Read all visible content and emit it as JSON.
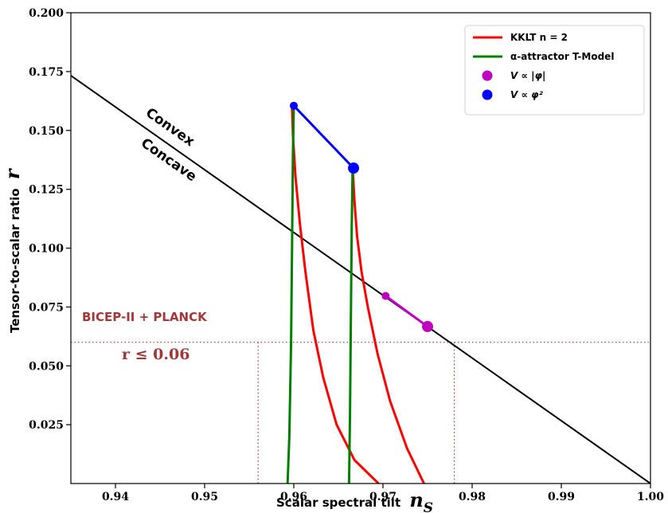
{
  "chart_data": {
    "type": "line",
    "xlabel": "Scalar spectral tilt",
    "xlabel_symbol": "n",
    "xlabel_sub": "S",
    "ylabel": "Tensor-to-scalar ratio",
    "ylabel_symbol": "r",
    "xlim": [
      0.935,
      1.0
    ],
    "ylim": [
      0.0,
      0.2
    ],
    "x_ticks": [
      "0.94",
      "0.95",
      "0.96",
      "0.97",
      "0.98",
      "0.99",
      "1.00"
    ],
    "y_ticks": [
      "0.025",
      "0.050",
      "0.075",
      "0.100",
      "0.125",
      "0.150",
      "0.175",
      "0.200"
    ],
    "grid": false,
    "legend_position": "top-right",
    "legend": {
      "kklt": "KKLT n = 2",
      "alpha": "α-attractor T-Model",
      "vphi": "V ∝ |φ|",
      "vphi2": "V ∝ φ²"
    },
    "annotations": {
      "convex": "Convex",
      "concave": "Concave",
      "bicep": "BICEP-II + PLANCK",
      "bound": "r ≤ 0.06"
    },
    "colors": {
      "kklt": "#ff0000",
      "alpha": "#008000",
      "vphi": "#bf00bf",
      "vphi2": "#0000ff",
      "divider": "#000000",
      "planck": "#a03838"
    },
    "planck_bound": {
      "r": 0.06,
      "ns_low": 0.956,
      "ns_high": 0.978
    },
    "divider_line": {
      "x": [
        0.935,
        1.0
      ],
      "y": [
        0.1733,
        0.0
      ]
    },
    "series": [
      {
        "key": "kklt",
        "name": "KKLT n = 2",
        "x": [
          0.9695,
          0.9668,
          0.9648,
          0.9633,
          0.9622,
          0.9613,
          0.9607,
          0.9602,
          0.9599,
          0.9598
        ],
        "y": [
          0.0,
          0.01,
          0.025,
          0.045,
          0.065,
          0.09,
          0.11,
          0.13,
          0.148,
          0.16
        ]
      },
      {
        "key": "kklt",
        "name": "KKLT n = 2",
        "x": [
          0.9746,
          0.9727,
          0.9708,
          0.9694,
          0.9683,
          0.9676,
          0.9671,
          0.9668,
          0.9666
        ],
        "y": [
          0.0,
          0.015,
          0.035,
          0.055,
          0.075,
          0.09,
          0.105,
          0.12,
          0.134
        ]
      },
      {
        "key": "alpha",
        "name": "α-attractor T-Model",
        "x": [
          0.9593,
          0.9595,
          0.9597,
          0.9598,
          0.9599,
          0.96
        ],
        "y": [
          0.0,
          0.02,
          0.06,
          0.1,
          0.14,
          0.16
        ]
      },
      {
        "key": "alpha",
        "name": "α-attractor T-Model",
        "x": [
          0.9662,
          0.9663,
          0.9664,
          0.9665,
          0.9666
        ],
        "y": [
          0.0,
          0.03,
          0.07,
          0.11,
          0.134
        ]
      },
      {
        "key": "vphi2",
        "name": "V ∝ φ²",
        "x": [
          0.96,
          0.9667
        ],
        "y": [
          0.1605,
          0.134
        ],
        "marker_end": true,
        "marker_start_small": true
      },
      {
        "key": "vphi",
        "name": "V ∝ |φ|",
        "x": [
          0.9703,
          0.975
        ],
        "y": [
          0.0797,
          0.0667
        ],
        "marker_end": true,
        "marker_start_small": true
      }
    ]
  }
}
